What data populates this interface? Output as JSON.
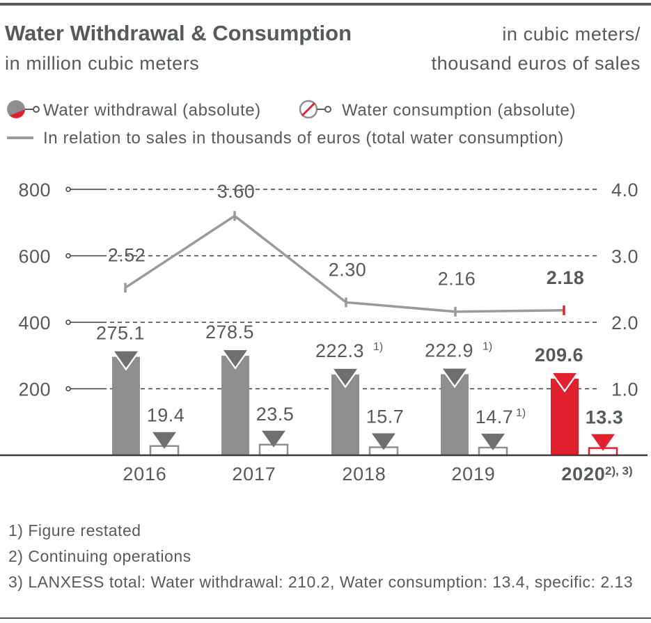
{
  "header": {
    "title": "Water Withdrawal & Consumption",
    "left_unit": "in million cubic meters",
    "right_unit_line1": "in cubic meters/",
    "right_unit_line2": "thousand euros of sales"
  },
  "legend": {
    "withdrawal": "Water withdrawal (absolute)",
    "consumption": "Water consumption (absolute)",
    "relation": "In relation to sales in thousands of euros (total water consumption)"
  },
  "colors": {
    "gray_bar": "#8e8e8e",
    "highlight": "#e3202e",
    "text": "#555a5d",
    "axis": "#3c3c3c",
    "line": "#9a9a9a"
  },
  "chart_data": {
    "type": "bar",
    "categories": [
      "2016",
      "2017",
      "2018",
      "2019",
      "2020"
    ],
    "category_suffix": [
      "",
      "",
      "",
      "",
      "2), 3)"
    ],
    "highlight_category": "2020",
    "left_axis": {
      "ylim": [
        0,
        800
      ],
      "ticks": [
        "200",
        "400",
        "600",
        "800"
      ]
    },
    "right_axis": {
      "ylim": [
        0,
        4.0
      ],
      "ticks": [
        "1.0",
        "2.0",
        "3.0",
        "4.0"
      ]
    },
    "series": [
      {
        "name": "Water withdrawal (absolute)",
        "kind": "bar",
        "axis": "left",
        "values": [
          275.1,
          278.5,
          222.3,
          222.9,
          209.6
        ],
        "labels": [
          "275.1",
          "278.5",
          "222.3",
          "222.9",
          "209.6"
        ],
        "label_notes": [
          "",
          "",
          "1)",
          "1)",
          ""
        ]
      },
      {
        "name": "Water consumption (absolute)",
        "kind": "bar-outline",
        "axis": "left",
        "values": [
          19.4,
          23.5,
          15.7,
          14.7,
          13.3
        ],
        "labels": [
          "19.4",
          "23.5",
          "15.7",
          "14.7",
          "13.3"
        ],
        "label_notes": [
          "",
          "",
          "",
          "1)",
          ""
        ]
      },
      {
        "name": "In relation to sales in thousands of euros (total water consumption)",
        "kind": "line",
        "axis": "right",
        "values": [
          2.52,
          3.6,
          2.3,
          2.16,
          2.18
        ],
        "labels": [
          "2.52",
          "3.60",
          "2.30",
          "2.16",
          "2.18"
        ]
      }
    ]
  },
  "footnotes": [
    "1) Figure restated",
    "2) Continuing operations",
    "3) LANXESS total: Water withdrawal: 210.2, Water consumption: 13.4, specific: 2.13"
  ]
}
